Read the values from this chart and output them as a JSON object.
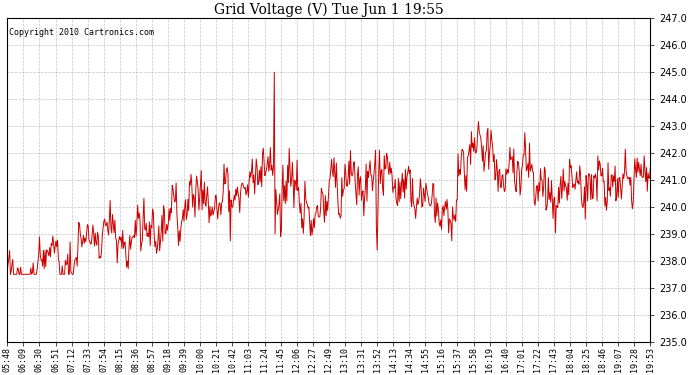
{
  "title": "Grid Voltage (V) Tue Jun 1 19:55",
  "copyright_text": "Copyright 2010 Cartronics.com",
  "line_color": "#cc0000",
  "background_color": "#ffffff",
  "plot_bg_color": "#ffffff",
  "grid_color": "#aaaaaa",
  "ylim": [
    235.0,
    247.0
  ],
  "yticks": [
    235.0,
    236.0,
    237.0,
    238.0,
    239.0,
    240.0,
    241.0,
    242.0,
    243.0,
    244.0,
    245.0,
    246.0,
    247.0
  ],
  "xtick_labels": [
    "05:48",
    "06:09",
    "06:30",
    "06:51",
    "07:12",
    "07:33",
    "07:54",
    "08:15",
    "08:36",
    "08:57",
    "09:18",
    "09:39",
    "10:00",
    "10:21",
    "10:42",
    "11:03",
    "11:24",
    "11:45",
    "12:06",
    "12:27",
    "12:49",
    "13:10",
    "13:31",
    "13:52",
    "14:13",
    "14:34",
    "14:55",
    "15:16",
    "15:37",
    "15:58",
    "16:19",
    "16:40",
    "17:01",
    "17:22",
    "17:43",
    "18:04",
    "18:25",
    "18:46",
    "19:07",
    "19:28",
    "19:53"
  ],
  "n_points": 820,
  "line_width": 0.7,
  "title_fontsize": 10,
  "tick_fontsize": 6,
  "ytick_fontsize": 7
}
